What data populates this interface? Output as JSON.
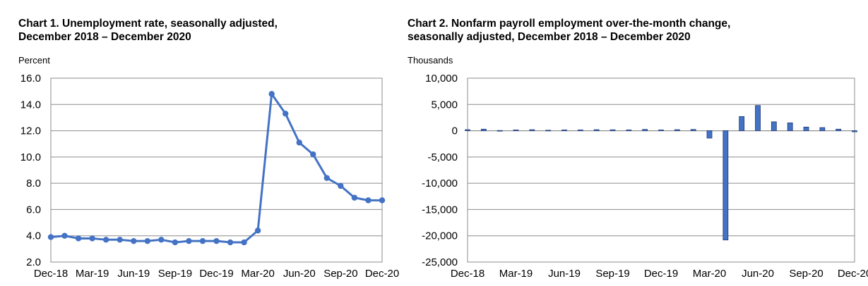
{
  "chart_data": [
    {
      "type": "line",
      "title": "Chart 1. Unemployment rate, seasonally adjusted,",
      "title_line2": "December 2018 – December 2020",
      "ylabel": "Percent",
      "xlabel": "",
      "ylim": [
        2.0,
        16.0
      ],
      "yticks": [
        "2.0",
        "4.0",
        "6.0",
        "8.0",
        "10.0",
        "12.0",
        "14.0",
        "16.0"
      ],
      "xtick_labels": [
        "Dec-18",
        "Mar-19",
        "Jun-19",
        "Sep-19",
        "Dec-19",
        "Mar-20",
        "Jun-20",
        "Sep-20",
        "Dec-20"
      ],
      "grid": true,
      "color": "#4472C4",
      "categories": [
        "Dec-18",
        "Jan-19",
        "Feb-19",
        "Mar-19",
        "Apr-19",
        "May-19",
        "Jun-19",
        "Jul-19",
        "Aug-19",
        "Sep-19",
        "Oct-19",
        "Nov-19",
        "Dec-19",
        "Jan-20",
        "Feb-20",
        "Mar-20",
        "Apr-20",
        "May-20",
        "Jun-20",
        "Jul-20",
        "Aug-20",
        "Sep-20",
        "Oct-20",
        "Nov-20",
        "Dec-20"
      ],
      "values": [
        3.9,
        4.0,
        3.8,
        3.8,
        3.7,
        3.7,
        3.6,
        3.6,
        3.7,
        3.5,
        3.6,
        3.6,
        3.6,
        3.5,
        3.5,
        4.4,
        14.8,
        13.3,
        11.1,
        10.2,
        8.4,
        7.8,
        6.9,
        6.7,
        6.7
      ]
    },
    {
      "type": "bar",
      "title": "Chart 2. Nonfarm payroll employment over-the-month change,",
      "title_line2": "seasonally adjusted, December 2018 – December 2020",
      "ylabel": "Thousands",
      "xlabel": "",
      "ylim": [
        -25000,
        10000
      ],
      "yticks": [
        "-25,000",
        "-20,000",
        "-15,000",
        "-10,000",
        "-5,000",
        "0",
        "5,000",
        "10,000"
      ],
      "xtick_labels": [
        "Dec-18",
        "Mar-19",
        "Jun-19",
        "Sep-19",
        "Dec-19",
        "Mar-20",
        "Jun-20",
        "Sep-20",
        "Dec-20"
      ],
      "grid": true,
      "color": "#4472C4",
      "categories": [
        "Dec-18",
        "Jan-19",
        "Feb-19",
        "Mar-19",
        "Apr-19",
        "May-19",
        "Jun-19",
        "Jul-19",
        "Aug-19",
        "Sep-19",
        "Oct-19",
        "Nov-19",
        "Dec-19",
        "Jan-20",
        "Feb-20",
        "Mar-20",
        "Apr-20",
        "May-20",
        "Jun-20",
        "Jul-20",
        "Aug-20",
        "Sep-20",
        "Oct-20",
        "Nov-20",
        "Dec-20"
      ],
      "values": [
        200,
        300,
        50,
        150,
        200,
        100,
        150,
        150,
        200,
        180,
        150,
        250,
        150,
        200,
        250,
        -1400,
        -20800,
        2700,
        4800,
        1700,
        1500,
        700,
        600,
        300,
        -200
      ]
    }
  ]
}
